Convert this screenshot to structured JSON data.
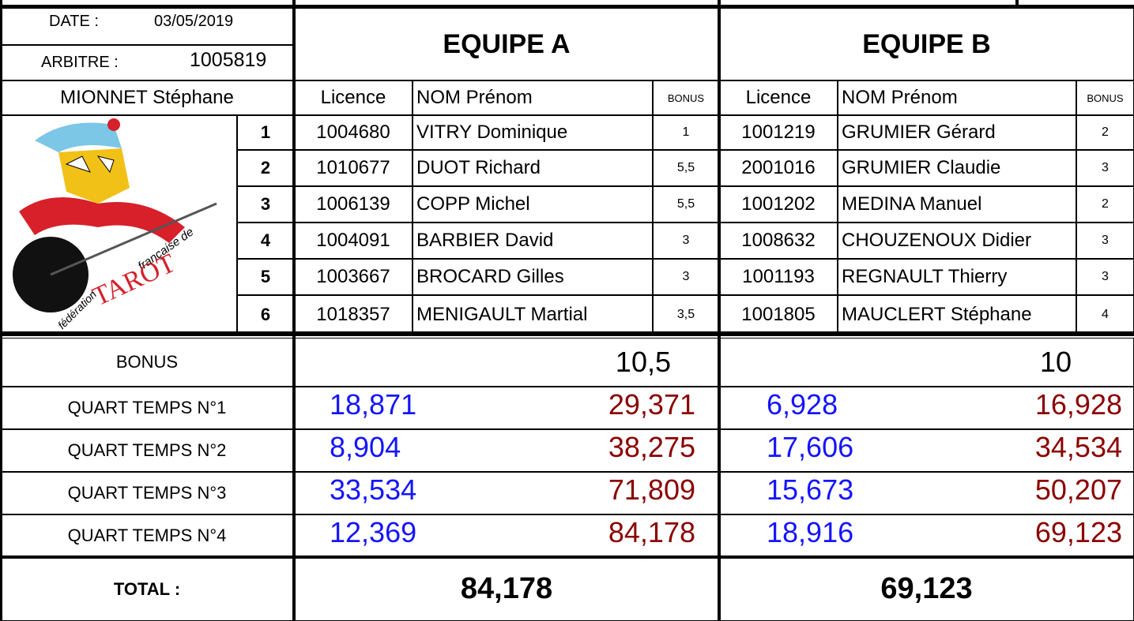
{
  "header": {
    "date_label": "DATE :",
    "date": "03/05/2019",
    "arbitre_label": "ARBITRE :",
    "arbitre": "1005819",
    "referee_name": "MIONNET Stéphane"
  },
  "logo": {
    "line1": "française de",
    "line2": "TAROT",
    "line3": "fédération"
  },
  "ranks": [
    "1",
    "2",
    "3",
    "4",
    "5",
    "6"
  ],
  "row_labels": {
    "bonus": "BONUS",
    "quarters": [
      "QUART TEMPS N°1",
      "QUART TEMPS N°2",
      "QUART TEMPS N°3",
      "QUART TEMPS N°4"
    ],
    "total": "TOTAL :"
  },
  "teams": [
    {
      "name": "EQUIPE A",
      "columns": [
        "Licence",
        "NOM Prénom",
        "BONUS"
      ],
      "players": [
        [
          "1004680",
          "VITRY Dominique",
          "1"
        ],
        [
          "1010677",
          "DUOT Richard",
          "5,5"
        ],
        [
          "1006139",
          "COPP Michel",
          "5,5"
        ],
        [
          "1004091",
          "BARBIER David",
          "3"
        ],
        [
          "1003667",
          "BROCARD Gilles",
          "3"
        ],
        [
          "1018357",
          "MENIGAULT Martial",
          "3,5"
        ]
      ],
      "bonus_total": "10,5",
      "quarters": [
        [
          "18,871",
          "29,371"
        ],
        [
          "8,904",
          "38,275"
        ],
        [
          "33,534",
          "71,809"
        ],
        [
          "12,369",
          "84,178"
        ]
      ],
      "total": "84,178"
    },
    {
      "name": "EQUIPE B",
      "columns": [
        "Licence",
        "NOM Prénom",
        "BONUS"
      ],
      "players": [
        [
          "1001219",
          "GRUMIER Gérard",
          "2"
        ],
        [
          "2001016",
          "GRUMIER Claudie",
          "3"
        ],
        [
          "1001202",
          "MEDINA Manuel",
          "2"
        ],
        [
          "1008632",
          "CHOUZENOUX Didier",
          "3"
        ],
        [
          "1001193",
          "REGNAULT Thierry",
          "3"
        ],
        [
          "1001805",
          "MAUCLERT Stéphane",
          "4"
        ]
      ],
      "bonus_total": "10",
      "quarters": [
        [
          "6,928",
          "16,928"
        ],
        [
          "17,606",
          "34,534"
        ],
        [
          "15,673",
          "50,207"
        ],
        [
          "18,916",
          "69,123"
        ]
      ],
      "total": "69,123"
    }
  ]
}
